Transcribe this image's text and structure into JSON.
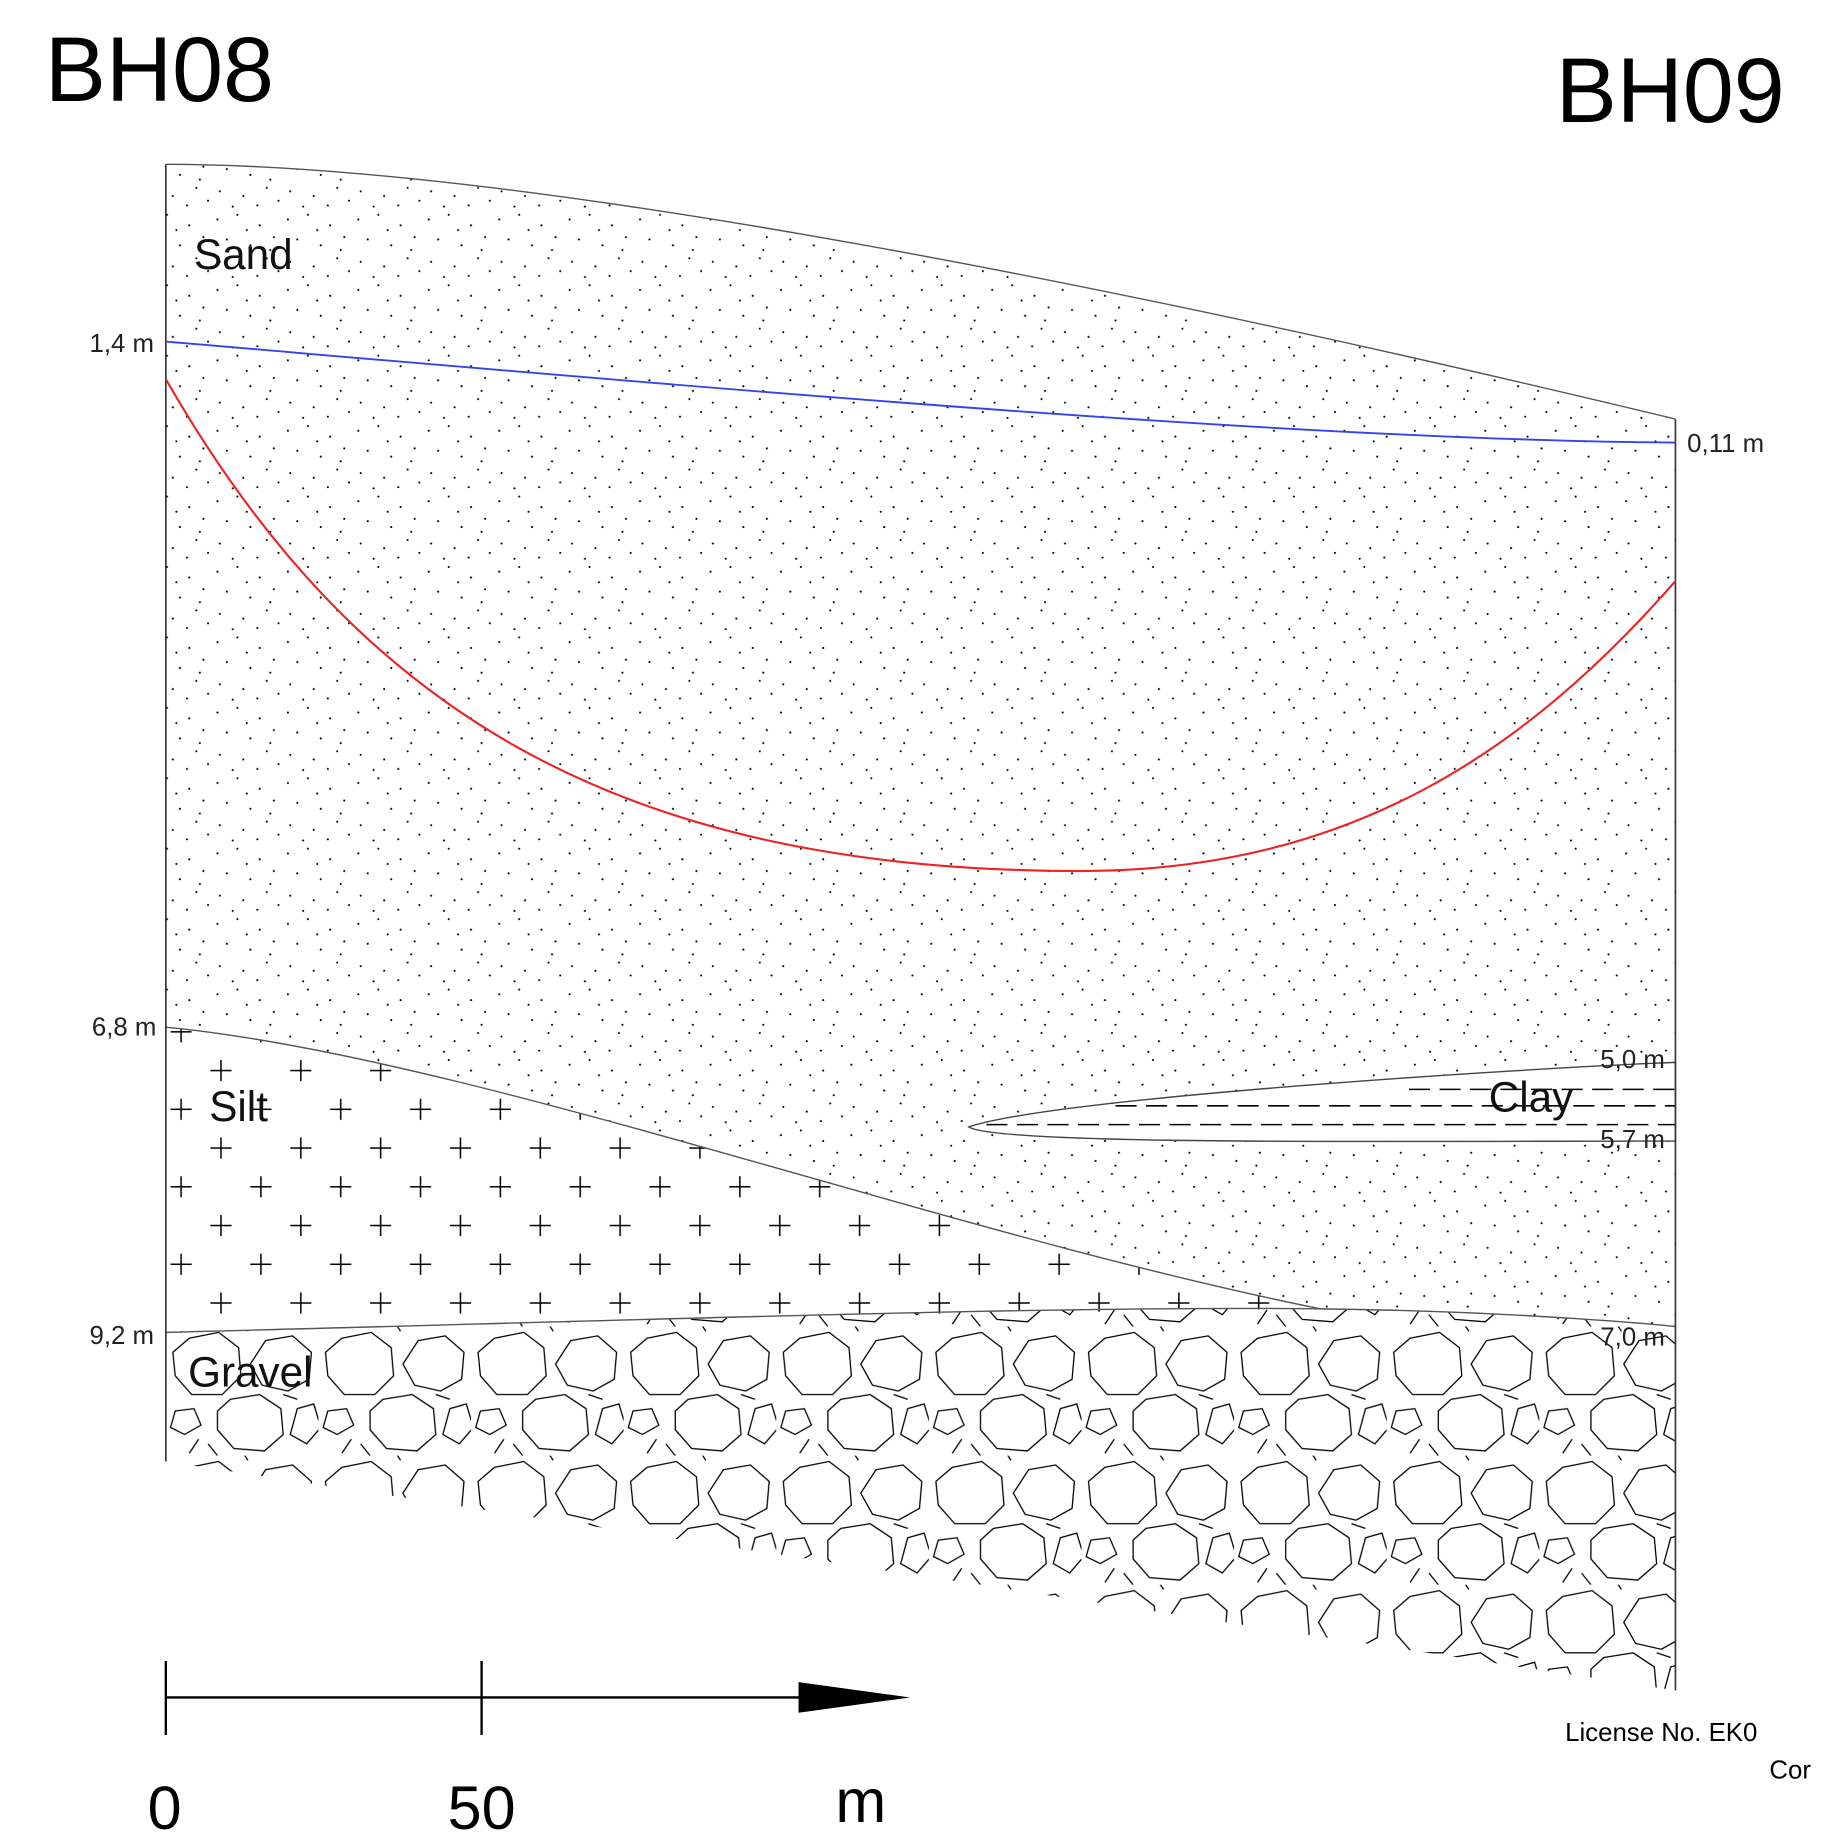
{
  "boreholes": {
    "left": "BH08",
    "right": "BH09"
  },
  "layers": {
    "sand": "Sand",
    "silt": "Silt",
    "clay": "Clay",
    "gravel": "Gravel"
  },
  "depth_labels": {
    "left": [
      "1,4 m",
      "6,8 m",
      "9,2 m"
    ],
    "right": [
      "0,11 m",
      "5,0 m",
      "5,7 m",
      "7,0 m"
    ]
  },
  "scale_bar": {
    "labels": [
      "0",
      "50"
    ],
    "unit": "m"
  },
  "footer": {
    "license": "License No. EK0",
    "line2": "Cor"
  }
}
